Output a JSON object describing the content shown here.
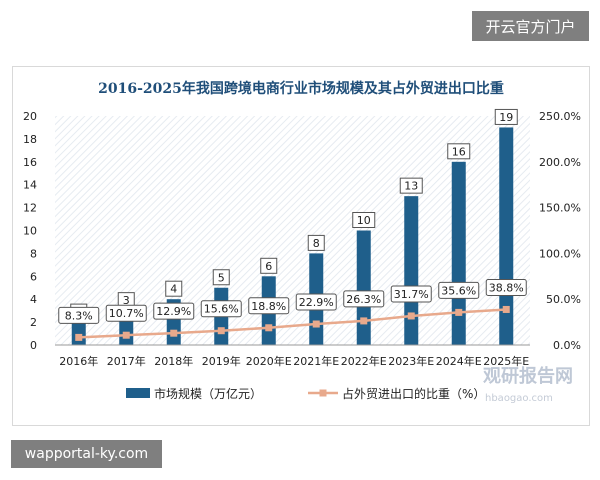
{
  "badges": {
    "top": "开云官方门户",
    "bottom": "wapportal-ky.com"
  },
  "watermark": {
    "text": "观研报告网",
    "url": "hbaogao.com"
  },
  "chart_data": {
    "type": "bar",
    "title": "2016-2025年我国跨境电商行业市场规模及其占外贸进出口比重",
    "categories": [
      "2016年",
      "2017年",
      "2018年",
      "2019年",
      "2020年E",
      "2021年E",
      "2022年E",
      "2023年E",
      "2024年E",
      "2025年E"
    ],
    "series": [
      {
        "name": "市场规模（万亿元）",
        "kind": "bar",
        "axis": "left",
        "color": "#1f5f8b",
        "values": [
          2,
          3,
          4,
          5,
          6,
          8,
          10,
          13,
          16,
          19
        ],
        "labels": [
          "2",
          "3",
          "4",
          "5",
          "6",
          "8",
          "10",
          "13",
          "16",
          "19"
        ]
      },
      {
        "name": "占外贸进出口的比重（%）",
        "kind": "line",
        "axis": "right",
        "color": "#e8a98c",
        "values": [
          8.3,
          10.7,
          12.9,
          15.6,
          18.8,
          22.9,
          26.3,
          31.7,
          35.6,
          38.8
        ],
        "labels": [
          "8.3%",
          "10.7%",
          "12.9%",
          "15.6%",
          "18.8%",
          "22.9%",
          "26.3%",
          "31.7%",
          "35.6%",
          "38.8%"
        ]
      }
    ],
    "y_left": {
      "min": 0,
      "max": 20,
      "ticks": [
        "0",
        "2",
        "4",
        "6",
        "8",
        "10",
        "12",
        "14",
        "16",
        "18",
        "20"
      ]
    },
    "y_right": {
      "min": 0,
      "max": 250,
      "ticks": [
        "0.0%",
        "50.0%",
        "100.0%",
        "150.0%",
        "200.0%",
        "250.0%"
      ]
    },
    "legend": {
      "position": "bottom"
    },
    "grid": false
  }
}
